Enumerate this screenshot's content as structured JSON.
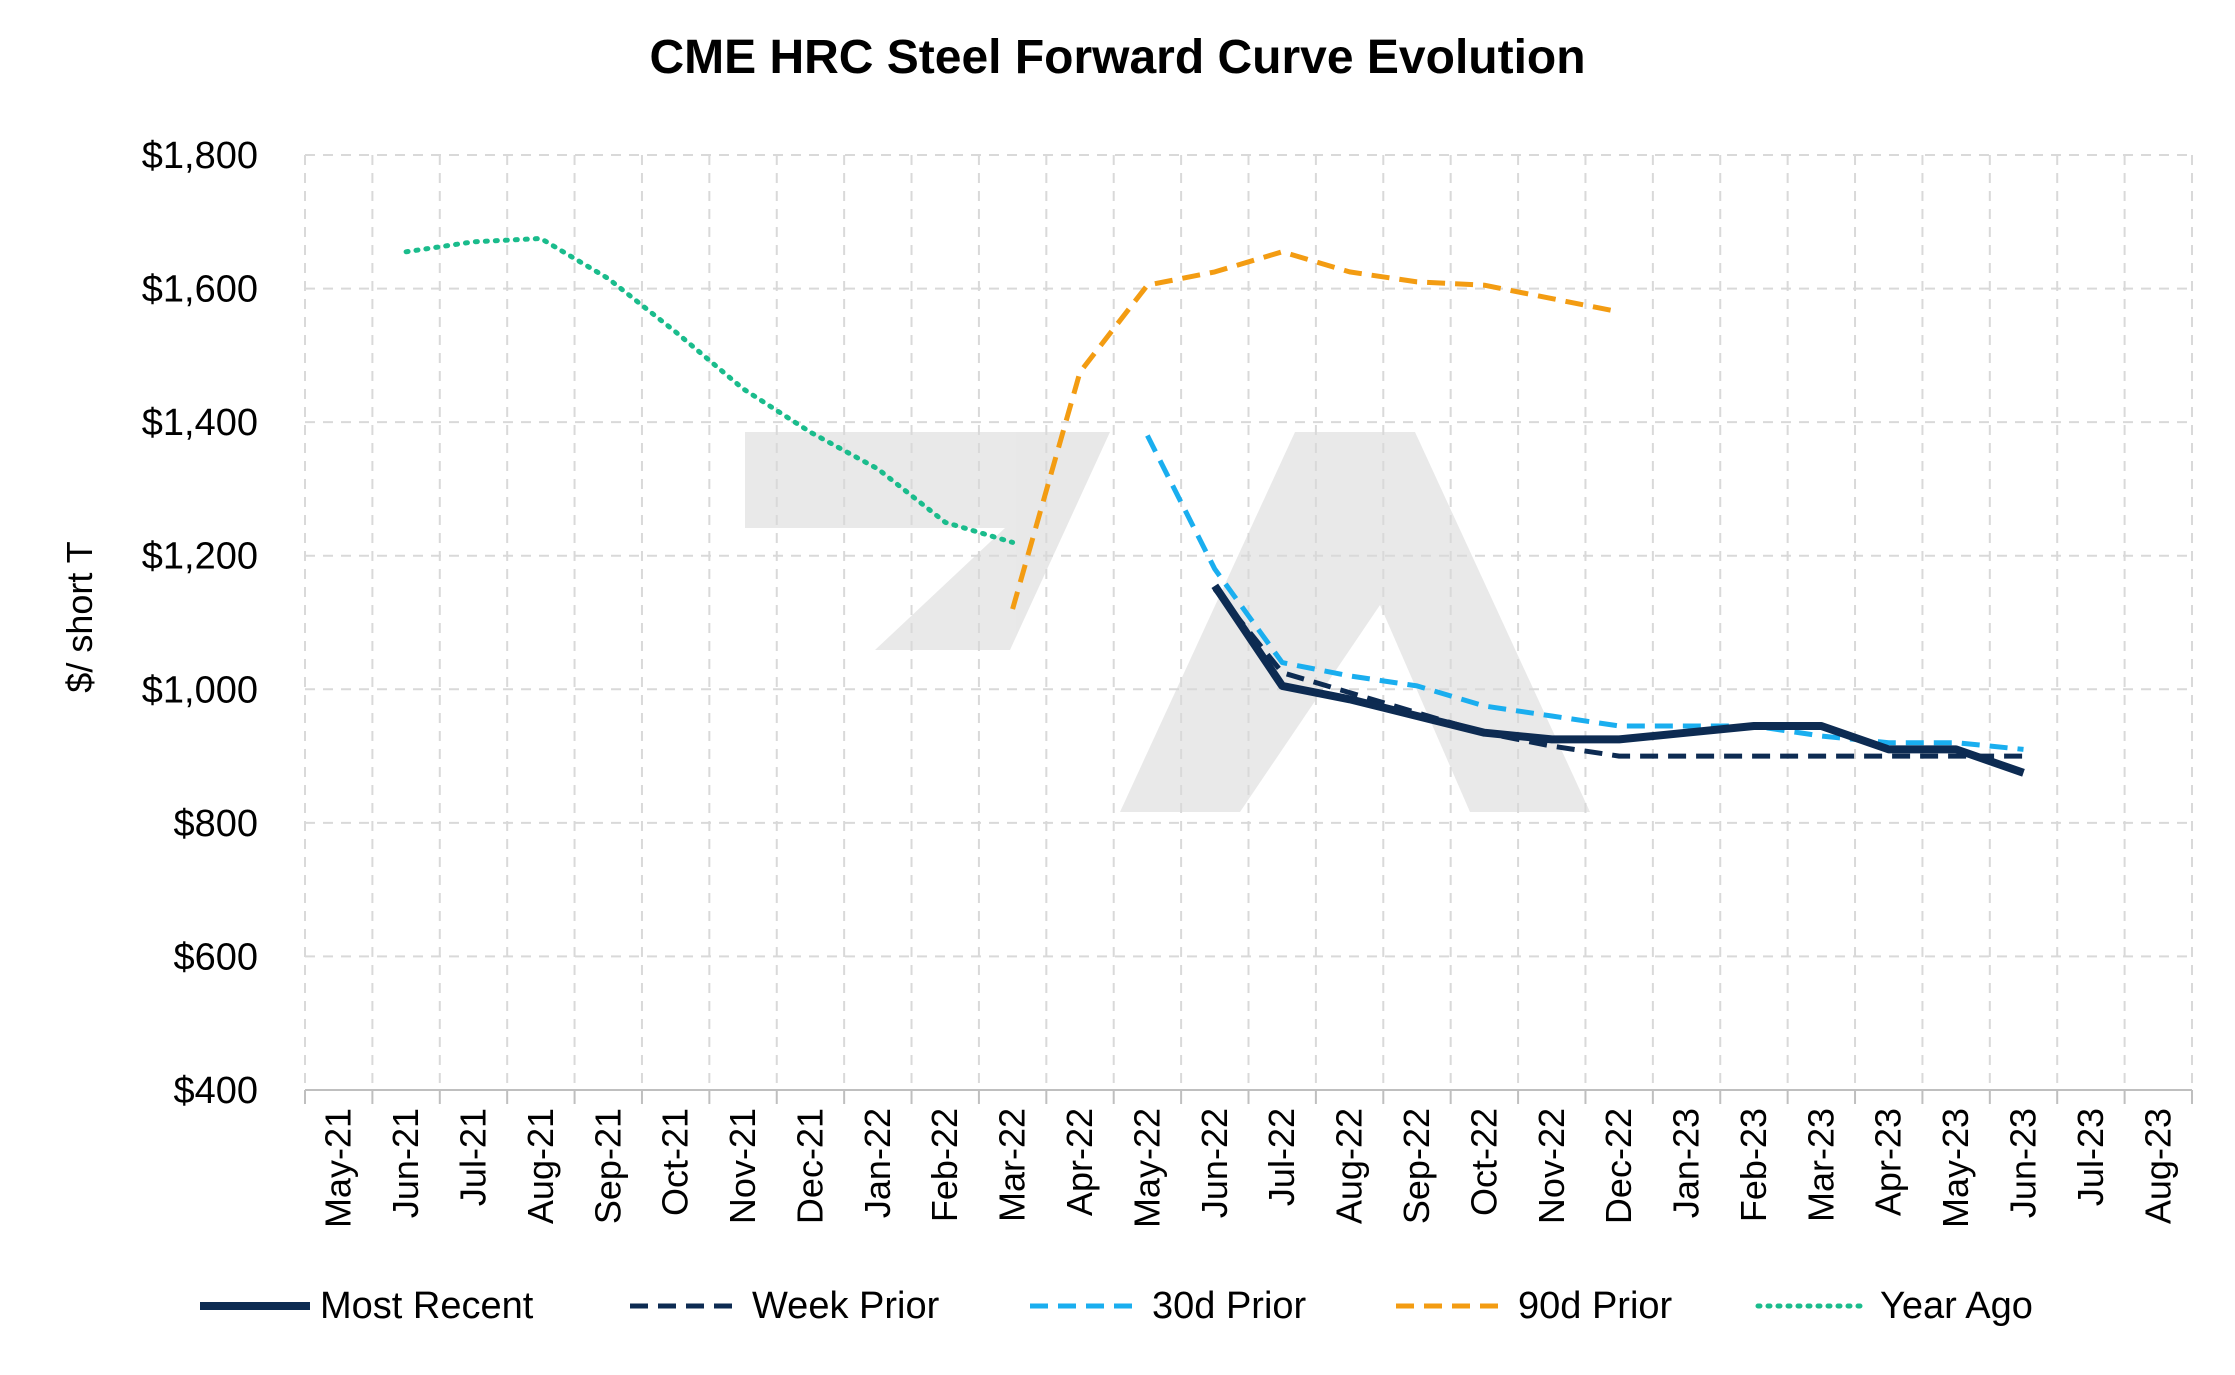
{
  "chart_data": {
    "type": "line",
    "title": "CME HRC Steel Forward Curve Evolution",
    "xlabel": "",
    "ylabel": "$/ short T",
    "ylim": [
      400,
      1800
    ],
    "yticks": [
      400,
      600,
      800,
      1000,
      1200,
      1400,
      1600,
      1800
    ],
    "ytick_labels": [
      "$400",
      "$600",
      "$800",
      "$1,000",
      "$1,200",
      "$1,400",
      "$1,600",
      "$1,800"
    ],
    "categories": [
      "May-21",
      "Jun-21",
      "Jul-21",
      "Aug-21",
      "Sep-21",
      "Oct-21",
      "Nov-21",
      "Dec-21",
      "Jan-22",
      "Feb-22",
      "Mar-22",
      "Apr-22",
      "May-22",
      "Jun-22",
      "Jul-22",
      "Aug-22",
      "Sep-22",
      "Oct-22",
      "Nov-22",
      "Dec-22",
      "Jan-23",
      "Feb-23",
      "Mar-23",
      "Apr-23",
      "May-23",
      "Jun-23",
      "Jul-23",
      "Aug-23"
    ],
    "grid": true,
    "legend_position": "bottom",
    "series": [
      {
        "name": "Most Recent",
        "color": "#0d2b52",
        "style": "solid",
        "values": [
          null,
          null,
          null,
          null,
          null,
          null,
          null,
          null,
          null,
          null,
          null,
          null,
          null,
          1155,
          1005,
          985,
          960,
          935,
          925,
          925,
          935,
          945,
          945,
          910,
          910,
          875,
          null,
          null
        ]
      },
      {
        "name": "Week Prior",
        "color": "#0d2b52",
        "style": "dashed",
        "values": [
          null,
          null,
          null,
          null,
          null,
          null,
          null,
          null,
          null,
          null,
          null,
          null,
          null,
          1150,
          1025,
          995,
          965,
          935,
          915,
          900,
          900,
          900,
          900,
          900,
          900,
          900,
          null,
          null
        ]
      },
      {
        "name": "30d Prior",
        "color": "#1aaeef",
        "style": "dashed",
        "values": [
          null,
          null,
          null,
          null,
          null,
          null,
          null,
          null,
          null,
          null,
          null,
          null,
          1380,
          1180,
          1040,
          1020,
          1005,
          975,
          960,
          945,
          945,
          945,
          930,
          920,
          920,
          910,
          null,
          null
        ]
      },
      {
        "name": "90d Prior",
        "color": "#f39c12",
        "style": "dashed",
        "values": [
          null,
          null,
          null,
          null,
          null,
          null,
          null,
          null,
          null,
          null,
          1120,
          1475,
          1605,
          1625,
          1655,
          1625,
          1610,
          1605,
          1585,
          1565,
          null,
          null,
          null,
          null,
          null,
          null,
          null,
          null
        ]
      },
      {
        "name": "Year Ago",
        "color": "#1abc8c",
        "style": "dotted",
        "values": [
          null,
          1655,
          1670,
          1675,
          1615,
          1535,
          1450,
          1385,
          1330,
          1250,
          1220,
          null,
          null,
          null,
          null,
          null,
          null,
          null,
          null,
          null,
          null,
          null,
          null,
          null,
          null,
          null,
          null,
          null
        ]
      }
    ]
  }
}
